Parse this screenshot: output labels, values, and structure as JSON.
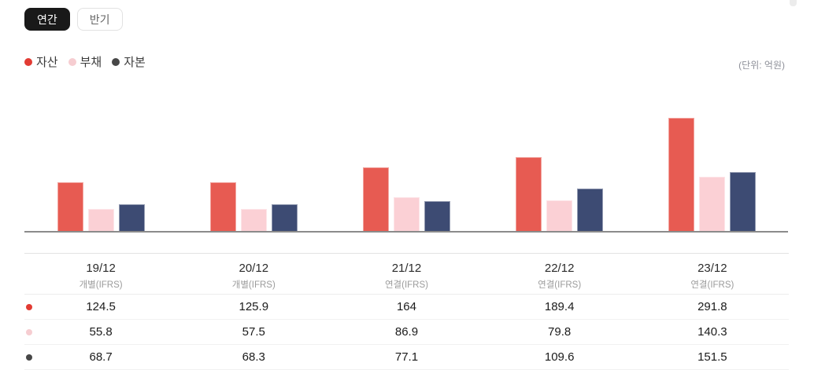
{
  "toolbar": {
    "buttons": [
      {
        "id": "annual",
        "label": "연간",
        "active": true
      },
      {
        "id": "semiannual",
        "label": "반기",
        "active": false
      }
    ]
  },
  "unit_label": "(단위: 억원)",
  "legend": {
    "items": [
      {
        "label": "자산",
        "dot_color": "#e23b33"
      },
      {
        "label": "부채",
        "dot_color": "#f6cdd1"
      },
      {
        "label": "자본",
        "dot_color": "#474747"
      }
    ]
  },
  "chart_data": {
    "type": "bar",
    "title": "",
    "xlabel": "",
    "ylabel": "억원",
    "unit": "(단위: 억원)",
    "categories": [
      "19/12",
      "20/12",
      "21/12",
      "22/12",
      "23/12"
    ],
    "category_subs": [
      "개별(IFRS)",
      "개별(IFRS)",
      "연결(IFRS)",
      "연결(IFRS)",
      "연결(IFRS)"
    ],
    "series": [
      {
        "name": "자산",
        "bar_color": "#e75b52",
        "dot_color": "#e23b33",
        "values": [
          124.5,
          125.9,
          164,
          189.4,
          291.8
        ]
      },
      {
        "name": "부채",
        "bar_color": "#fbd0d5",
        "dot_color": "#f6cdd1",
        "values": [
          55.8,
          57.5,
          86.9,
          79.8,
          140.3
        ]
      },
      {
        "name": "자본",
        "bar_color": "#3d4b73",
        "dot_color": "#474747",
        "values": [
          68.7,
          68.3,
          77.1,
          109.6,
          151.5
        ]
      }
    ],
    "ylim": [
      0,
      300
    ],
    "grid": false,
    "legend_position": "top-left",
    "baseline_color": "#8b8b8b"
  }
}
